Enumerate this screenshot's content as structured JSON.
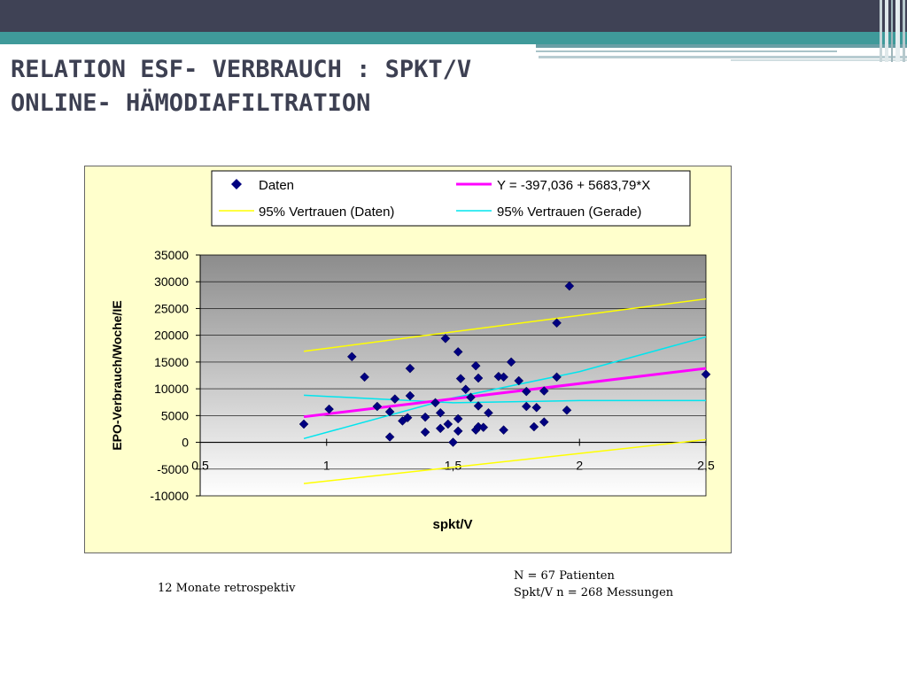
{
  "slide": {
    "title_line1": "RELATION ESF- VERBRAUCH : SPKT/V",
    "title_line2": "ONLINE- HÄMODIAFILTRATION",
    "note_left": "12 Monate retrospektiv",
    "note_right_line1": "N = 67 Patienten",
    "note_right_line2": "Spkt/V  n = 268 Messungen",
    "colors": {
      "header_dark": "#3f4255",
      "header_teal": "#3f9a9a",
      "title": "#3d4052",
      "chart_bg": "#ffffcc",
      "data_marker": "#000080",
      "regression": "#ff00ff",
      "ci_data": "#ffff00",
      "ci_line": "#00e5ee"
    }
  },
  "chart_data": {
    "type": "scatter",
    "xlabel": "spkt/V",
    "ylabel": "EPO-Verbrauch/Woche/IE",
    "xlim": [
      0.5,
      2.5
    ],
    "ylim": [
      -10000,
      35000
    ],
    "xticks": [
      "0,5",
      "1",
      "1,5",
      "2",
      "2,5"
    ],
    "yticks": [
      "35000",
      "30000",
      "25000",
      "20000",
      "15000",
      "10000",
      "5000",
      "0",
      "-5000",
      "-10000"
    ],
    "legend_position": "top",
    "grid": "horizontal",
    "legend": {
      "data": "Daten",
      "fit": "Y = -397,036 + 5683,79*X",
      "ci_data": "95% Vertrauen (Daten)",
      "ci_line": "95% Vertrauen (Gerade)"
    },
    "points": [
      [
        0.91,
        3400
      ],
      [
        1.01,
        6200
      ],
      [
        1.1,
        16000
      ],
      [
        1.15,
        12200
      ],
      [
        1.2,
        6700
      ],
      [
        1.25,
        5700
      ],
      [
        1.25,
        1000
      ],
      [
        1.27,
        8100
      ],
      [
        1.3,
        4000
      ],
      [
        1.32,
        4600
      ],
      [
        1.33,
        13800
      ],
      [
        1.33,
        8700
      ],
      [
        1.39,
        4700
      ],
      [
        1.39,
        1900
      ],
      [
        1.43,
        7400
      ],
      [
        1.45,
        5500
      ],
      [
        1.45,
        2600
      ],
      [
        1.47,
        19400
      ],
      [
        1.48,
        3400
      ],
      [
        1.5,
        0
      ],
      [
        1.52,
        16900
      ],
      [
        1.52,
        2100
      ],
      [
        1.52,
        4400
      ],
      [
        1.53,
        11900
      ],
      [
        1.55,
        9900
      ],
      [
        1.57,
        8400
      ],
      [
        1.59,
        14300
      ],
      [
        1.59,
        2300
      ],
      [
        1.6,
        2900
      ],
      [
        1.6,
        12000
      ],
      [
        1.6,
        6800
      ],
      [
        1.62,
        2800
      ],
      [
        1.64,
        5500
      ],
      [
        1.68,
        12300
      ],
      [
        1.7,
        12200
      ],
      [
        1.7,
        2300
      ],
      [
        1.73,
        15000
      ],
      [
        1.76,
        11500
      ],
      [
        1.79,
        9500
      ],
      [
        1.79,
        6700
      ],
      [
        1.82,
        2900
      ],
      [
        1.83,
        6500
      ],
      [
        1.86,
        3800
      ],
      [
        1.86,
        9600
      ],
      [
        1.91,
        22300
      ],
      [
        1.91,
        12200
      ],
      [
        1.95,
        6000
      ],
      [
        1.96,
        29200
      ],
      [
        2.5,
        12700
      ]
    ],
    "regression": {
      "intercept": -397.036,
      "slope": 5683.79,
      "x_range": [
        0.91,
        2.5
      ]
    },
    "ci_data_upper": [
      [
        0.91,
        17000
      ],
      [
        2.5,
        26800
      ]
    ],
    "ci_data_lower": [
      [
        0.91,
        -7700
      ],
      [
        2.5,
        500
      ]
    ],
    "ci_line_upper": [
      [
        0.91,
        700
      ],
      [
        1.5,
        8300
      ],
      [
        2.0,
        13200
      ],
      [
        2.5,
        19700
      ]
    ],
    "ci_line_lower": [
      [
        0.91,
        8800
      ],
      [
        1.5,
        7400
      ],
      [
        2.0,
        7800
      ],
      [
        2.5,
        7800
      ]
    ]
  }
}
